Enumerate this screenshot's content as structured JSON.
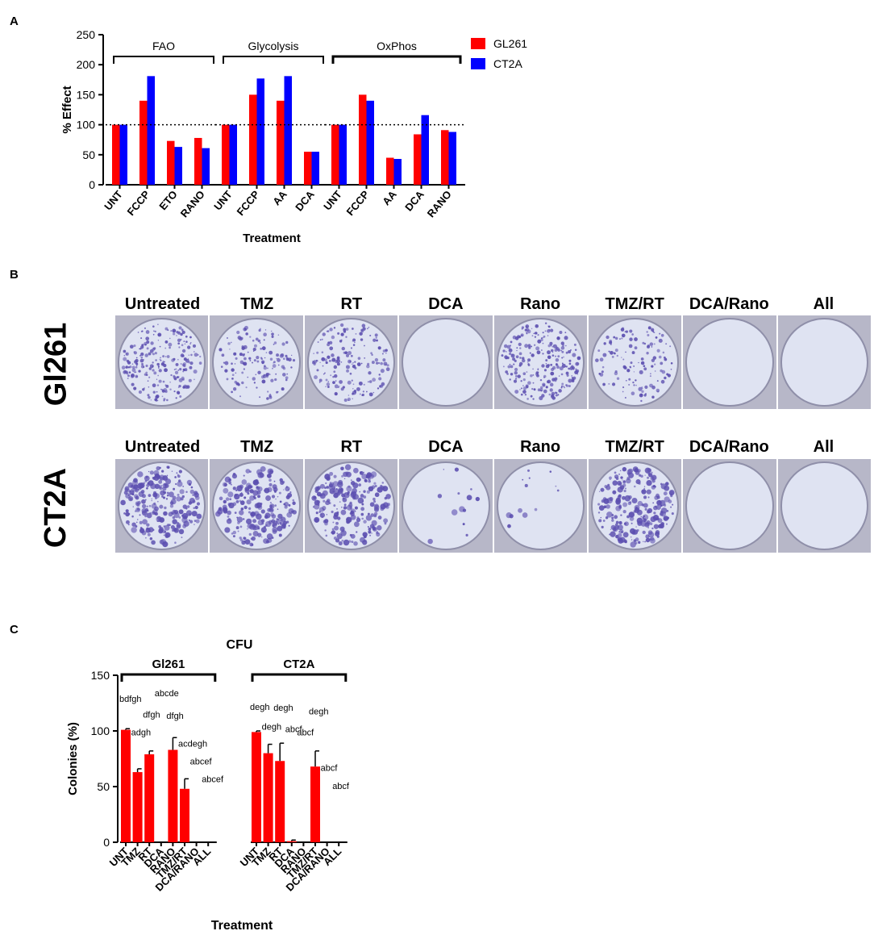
{
  "panels": {
    "a": "A",
    "b": "B",
    "c": "C"
  },
  "chartA": {
    "chart_data": {
      "type": "bar",
      "ylabel": "% Effect",
      "xlabel": "Treatment",
      "ylim": [
        0,
        250
      ],
      "yticks": [
        0,
        50,
        100,
        150,
        200,
        250
      ],
      "reference_line": 100,
      "legend": [
        {
          "name": "GL261",
          "color": "#ff0000"
        },
        {
          "name": "CT2A",
          "color": "#0000ff"
        }
      ],
      "groups": [
        {
          "label": "FAO",
          "categories": [
            "UNT",
            "FCCP",
            "ETO",
            "RANO"
          ],
          "series": {
            "GL261": [
              100,
              140,
              73,
              78
            ],
            "CT2A": [
              100,
              181,
              63,
              61
            ]
          }
        },
        {
          "label": "Glycolysis",
          "categories": [
            "UNT",
            "FCCP",
            "AA",
            "DCA"
          ],
          "series": {
            "GL261": [
              100,
              150,
              140,
              55
            ],
            "CT2A": [
              100,
              177,
              181,
              55
            ]
          }
        },
        {
          "label": "OxPhos",
          "categories": [
            "UNT",
            "FCCP",
            "AA",
            "DCA",
            "RANO"
          ],
          "series": {
            "GL261": [
              100,
              150,
              45,
              84,
              91
            ],
            "CT2A": [
              100,
              140,
              43,
              116,
              88
            ]
          }
        }
      ]
    }
  },
  "panelB": {
    "titles": [
      "Untreated",
      "TMZ",
      "RT",
      "DCA",
      "Rano",
      "TMZ/RT",
      "DCA/Rano",
      "All"
    ],
    "rows": [
      "Gl261",
      "CT2A"
    ],
    "colony_density": [
      [
        0.9,
        0.55,
        0.65,
        0.0,
        0.95,
        0.5,
        0.0,
        0.0
      ],
      [
        0.95,
        0.85,
        0.9,
        0.05,
        0.05,
        0.9,
        0.0,
        0.0
      ]
    ],
    "colony_color": "#5c4fb0"
  },
  "chartC": {
    "chart_data": {
      "type": "bar",
      "title": "CFU",
      "ylabel": "Colonies (%)",
      "xlabel": "Treatment",
      "ylim": [
        0,
        150
      ],
      "yticks": [
        0,
        50,
        100,
        150
      ],
      "color": "#ff0000",
      "groups": [
        {
          "label": "Gl261",
          "categories": [
            "UNT",
            "TMZ",
            "RT",
            "DCA",
            "RANO",
            "TMZ/RT",
            "DCA/RANO",
            "ALL"
          ],
          "values": [
            101,
            63,
            79,
            0,
            83,
            48,
            0,
            0
          ],
          "errors": [
            1,
            3,
            3,
            0,
            11,
            9,
            0,
            0
          ],
          "annotations": [
            "bdfgh",
            "adgh",
            "dfgh",
            "abcde",
            "dfgh",
            "acdegh",
            "abcef",
            "abcef"
          ],
          "annotation_values": [
            126,
            96,
            112,
            131,
            111,
            86,
            70,
            54
          ]
        },
        {
          "label": "CT2A",
          "categories": [
            "UNT",
            "TMZ",
            "RT",
            "DCA",
            "RANO",
            "TMZ/RT",
            "DCA/RANO",
            "ALL"
          ],
          "values": [
            99,
            80,
            73,
            1,
            0,
            68,
            0,
            0
          ],
          "errors": [
            1,
            8,
            16,
            1,
            0,
            14,
            0,
            0
          ],
          "annotations": [
            "degh",
            "degh",
            "degh",
            "abcf",
            "abcf",
            "degh",
            "abcf",
            "abcf"
          ],
          "annotation_values": [
            119,
            101,
            118,
            99,
            96,
            115,
            64,
            48
          ]
        }
      ]
    }
  }
}
